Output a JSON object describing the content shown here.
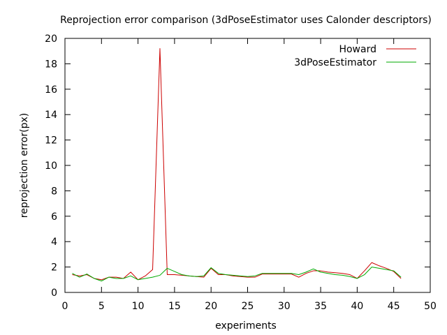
{
  "chart_data": {
    "type": "line",
    "title": "Reprojection error comparison (3dPoseEstimator uses Calonder descriptors)",
    "xlabel": "experiments",
    "ylabel": "reprojection error(px)",
    "xlim": [
      0,
      50
    ],
    "ylim": [
      0,
      20
    ],
    "xticks": [
      0,
      5,
      10,
      15,
      20,
      25,
      30,
      35,
      40,
      45,
      50
    ],
    "yticks": [
      0,
      2,
      4,
      6,
      8,
      10,
      12,
      14,
      16,
      18,
      20
    ],
    "grid": false,
    "legend_position": "top-right",
    "series": [
      {
        "name": "Howard",
        "color": "#cc0000",
        "x": [
          1,
          2,
          3,
          4,
          5,
          6,
          7,
          8,
          9,
          10,
          11,
          12,
          13,
          14,
          15,
          16,
          17,
          18,
          19,
          20,
          21,
          22,
          23,
          24,
          25,
          26,
          27,
          28,
          29,
          30,
          31,
          32,
          33,
          34,
          35,
          36,
          37,
          38,
          39,
          40,
          41,
          42,
          43,
          44,
          45,
          46
        ],
        "y": [
          1.4,
          1.3,
          1.4,
          1.1,
          1.0,
          1.2,
          1.2,
          1.1,
          1.6,
          1.0,
          1.3,
          1.8,
          19.2,
          1.4,
          1.4,
          1.35,
          1.3,
          1.25,
          1.2,
          1.9,
          1.4,
          1.4,
          1.3,
          1.25,
          1.2,
          1.2,
          1.45,
          1.45,
          1.45,
          1.45,
          1.45,
          1.2,
          1.5,
          1.7,
          1.7,
          1.6,
          1.55,
          1.5,
          1.4,
          1.1,
          1.7,
          2.35,
          2.1,
          1.9,
          1.65,
          1.1
        ]
      },
      {
        "name": "3dPoseEstimator",
        "color": "#00aa00",
        "x": [
          1,
          2,
          3,
          4,
          5,
          6,
          7,
          8,
          9,
          10,
          11,
          12,
          13,
          14,
          15,
          16,
          17,
          18,
          19,
          20,
          21,
          22,
          23,
          24,
          25,
          26,
          27,
          28,
          29,
          30,
          31,
          32,
          33,
          34,
          35,
          36,
          37,
          38,
          39,
          40,
          41,
          42,
          43,
          44,
          45,
          46
        ],
        "y": [
          1.5,
          1.2,
          1.45,
          1.1,
          0.9,
          1.2,
          1.1,
          1.1,
          1.3,
          1.0,
          1.1,
          1.2,
          1.35,
          1.9,
          1.65,
          1.4,
          1.3,
          1.25,
          1.3,
          1.95,
          1.5,
          1.4,
          1.35,
          1.3,
          1.25,
          1.3,
          1.5,
          1.5,
          1.5,
          1.5,
          1.5,
          1.4,
          1.6,
          1.85,
          1.6,
          1.5,
          1.4,
          1.35,
          1.25,
          1.1,
          1.4,
          2.0,
          1.9,
          1.8,
          1.7,
          1.2
        ]
      }
    ]
  }
}
